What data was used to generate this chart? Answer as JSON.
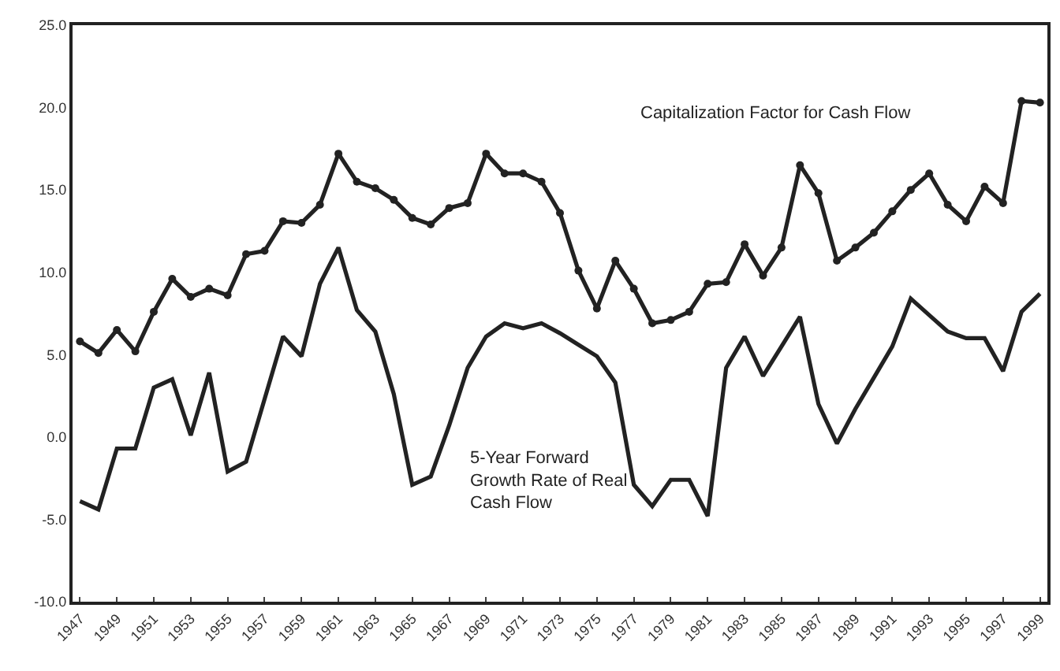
{
  "chart_data": {
    "type": "line",
    "x": [
      1947,
      1948,
      1949,
      1950,
      1951,
      1952,
      1953,
      1954,
      1955,
      1956,
      1957,
      1958,
      1959,
      1960,
      1961,
      1962,
      1963,
      1964,
      1965,
      1966,
      1967,
      1968,
      1969,
      1970,
      1971,
      1972,
      1973,
      1974,
      1975,
      1976,
      1977,
      1978,
      1979,
      1980,
      1981,
      1982,
      1983,
      1984,
      1985,
      1986,
      1987,
      1988,
      1989,
      1990,
      1991,
      1992,
      1993,
      1994,
      1995,
      1996,
      1997,
      1998,
      1999
    ],
    "series": [
      {
        "name": "Capitalization Factor for Cash Flow",
        "color": "#222222",
        "marker": "circle",
        "values": [
          5.8,
          5.1,
          6.5,
          5.2,
          7.6,
          9.6,
          8.5,
          9.0,
          8.6,
          11.1,
          11.3,
          13.1,
          13.0,
          14.1,
          17.2,
          15.5,
          15.1,
          14.4,
          13.3,
          12.9,
          13.9,
          14.2,
          17.2,
          16.0,
          16.0,
          15.5,
          13.6,
          10.1,
          7.8,
          10.7,
          9.0,
          6.9,
          7.1,
          7.6,
          9.3,
          9.4,
          11.7,
          9.8,
          11.5,
          16.5,
          14.8,
          10.7,
          11.5,
          12.4,
          13.7,
          15.0,
          16.0,
          14.1,
          13.1,
          15.2,
          14.2,
          20.4,
          20.3
        ]
      },
      {
        "name": "5-Year Forward\nGrowth Rate of Real\nCash Flow",
        "color": "#222222",
        "marker": "none",
        "values": [
          -3.9,
          -4.4,
          -0.7,
          -0.7,
          3.0,
          3.5,
          0.1,
          3.9,
          -2.1,
          -1.5,
          2.3,
          6.1,
          4.9,
          9.3,
          11.5,
          7.7,
          6.4,
          2.6,
          -2.9,
          -2.4,
          0.7,
          4.2,
          6.1,
          6.9,
          6.6,
          6.9,
          6.3,
          5.6,
          4.9,
          3.3,
          -2.9,
          -4.2,
          -2.6,
          -2.6,
          -4.8,
          4.2,
          6.1,
          3.7,
          5.5,
          7.3,
          2.0,
          -0.4,
          1.7,
          3.6,
          5.5,
          8.4,
          7.4,
          6.4,
          6.0,
          6.0,
          4.0,
          7.6,
          8.7
        ]
      }
    ],
    "xlim": [
      1946.6,
      1999.4
    ],
    "xticks": [
      1947,
      1949,
      1951,
      1953,
      1955,
      1957,
      1959,
      1961,
      1963,
      1965,
      1967,
      1969,
      1971,
      1973,
      1975,
      1977,
      1979,
      1981,
      1983,
      1985,
      1987,
      1989,
      1991,
      1993,
      1995,
      1997,
      1999
    ],
    "ylim": [
      -10,
      25
    ],
    "yticks": [
      {
        "value": -10,
        "label": "-10.0"
      },
      {
        "value": -5,
        "label": "-5.0"
      },
      {
        "value": 0,
        "label": "0.0"
      },
      {
        "value": 5,
        "label": "5.0"
      },
      {
        "value": 10,
        "label": "10.0"
      },
      {
        "value": 15,
        "label": "15.0"
      },
      {
        "value": 20,
        "label": "20.0"
      },
      {
        "value": 25,
        "label": "25.0"
      }
    ],
    "grid": false,
    "legend": false,
    "line_style": "solid"
  }
}
